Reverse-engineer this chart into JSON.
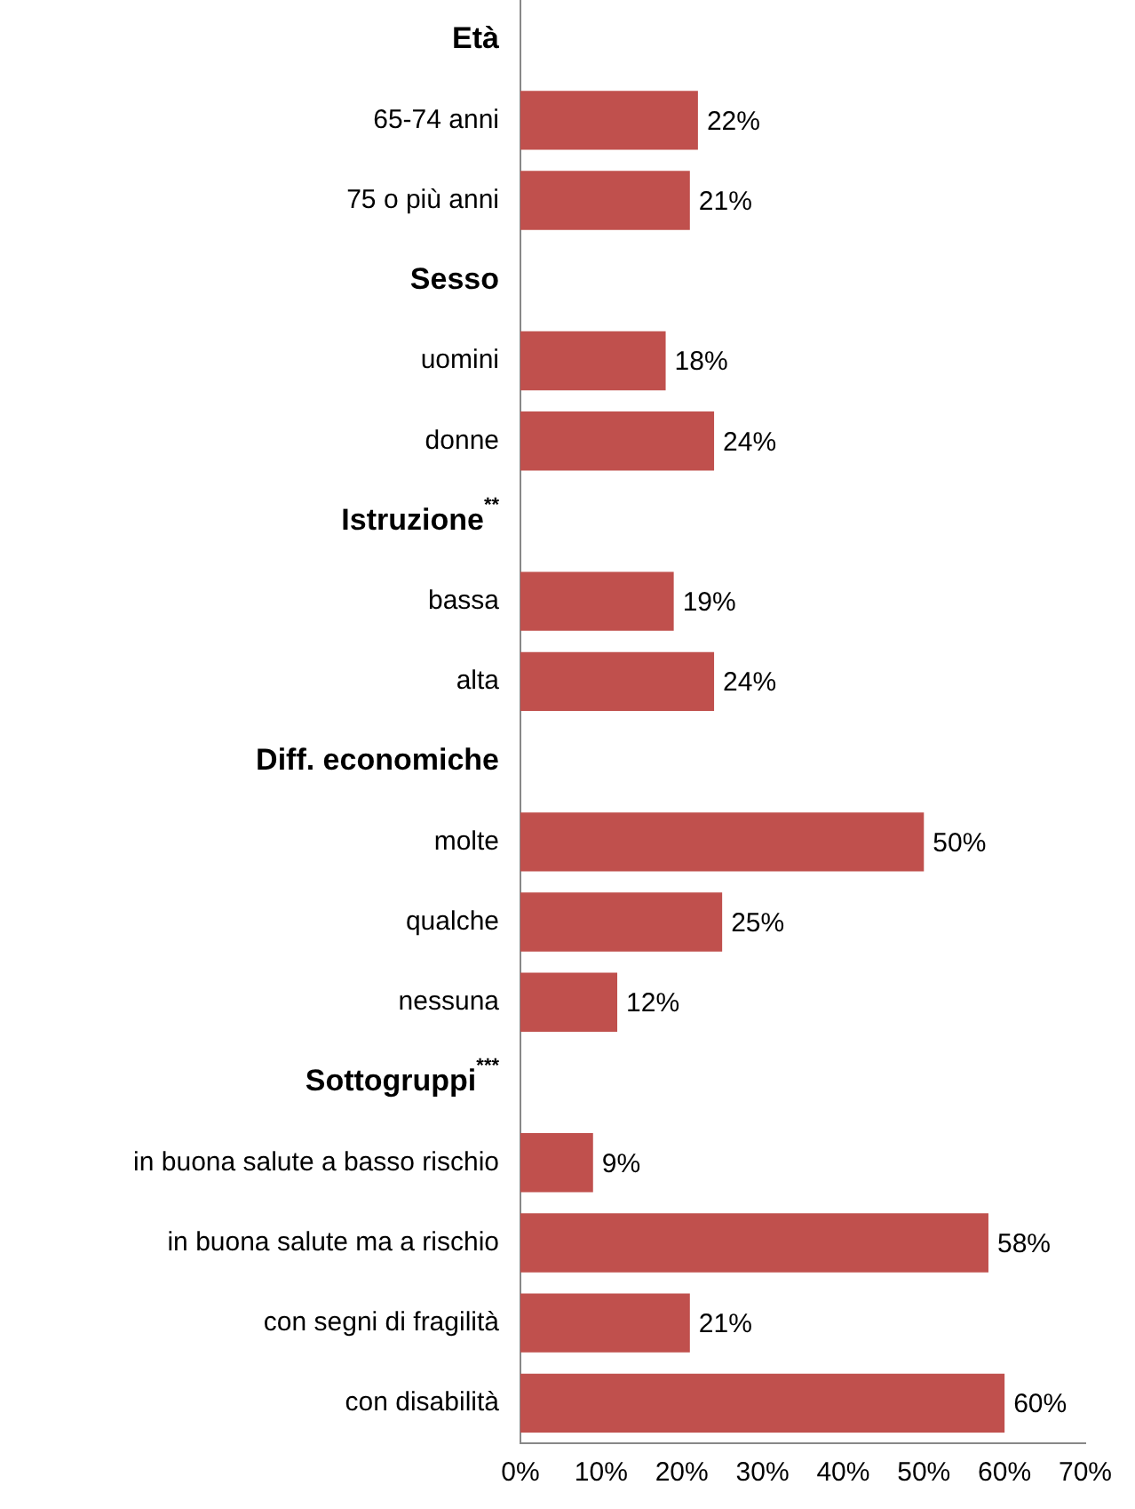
{
  "chart_data": {
    "type": "bar",
    "orientation": "horizontal",
    "categories": [
      "Età",
      "65-74 anni",
      "75 o più anni",
      "Sesso",
      "uomini",
      "donne",
      "Istruzione$^{**}$",
      "bassa",
      "alta",
      "Diff. economiche",
      "molte",
      "qualche",
      "nessuna",
      "Sottogruppi$^{***}$",
      "in buona salute a basso rischio",
      "in buona salute ma a rischio",
      "con segni di fragilità",
      "con disabilità"
    ],
    "values": [
      null,
      22,
      21,
      null,
      18,
      24,
      null,
      19,
      24,
      null,
      50,
      25,
      12,
      null,
      9,
      58,
      21,
      60
    ],
    "value_labels": [
      null,
      "22%",
      "21%",
      null,
      "18%",
      "24%",
      null,
      "19%",
      "24%",
      null,
      "50%",
      "25%",
      "12%",
      null,
      "9%",
      "58%",
      "21%",
      "60%"
    ],
    "color": "#c0504d",
    "xlim": [
      0,
      70
    ],
    "xticks": [
      {
        "value": 0,
        "label": "0%"
      },
      {
        "value": 10,
        "label": "10%"
      },
      {
        "value": 20,
        "label": "20%"
      },
      {
        "value": 30,
        "label": "30%"
      },
      {
        "value": 40,
        "label": "40%"
      },
      {
        "value": 50,
        "label": "50%"
      },
      {
        "value": 60,
        "label": "60%"
      },
      {
        "value": 70,
        "label": "70%"
      }
    ],
    "grid": false,
    "legend": false
  }
}
